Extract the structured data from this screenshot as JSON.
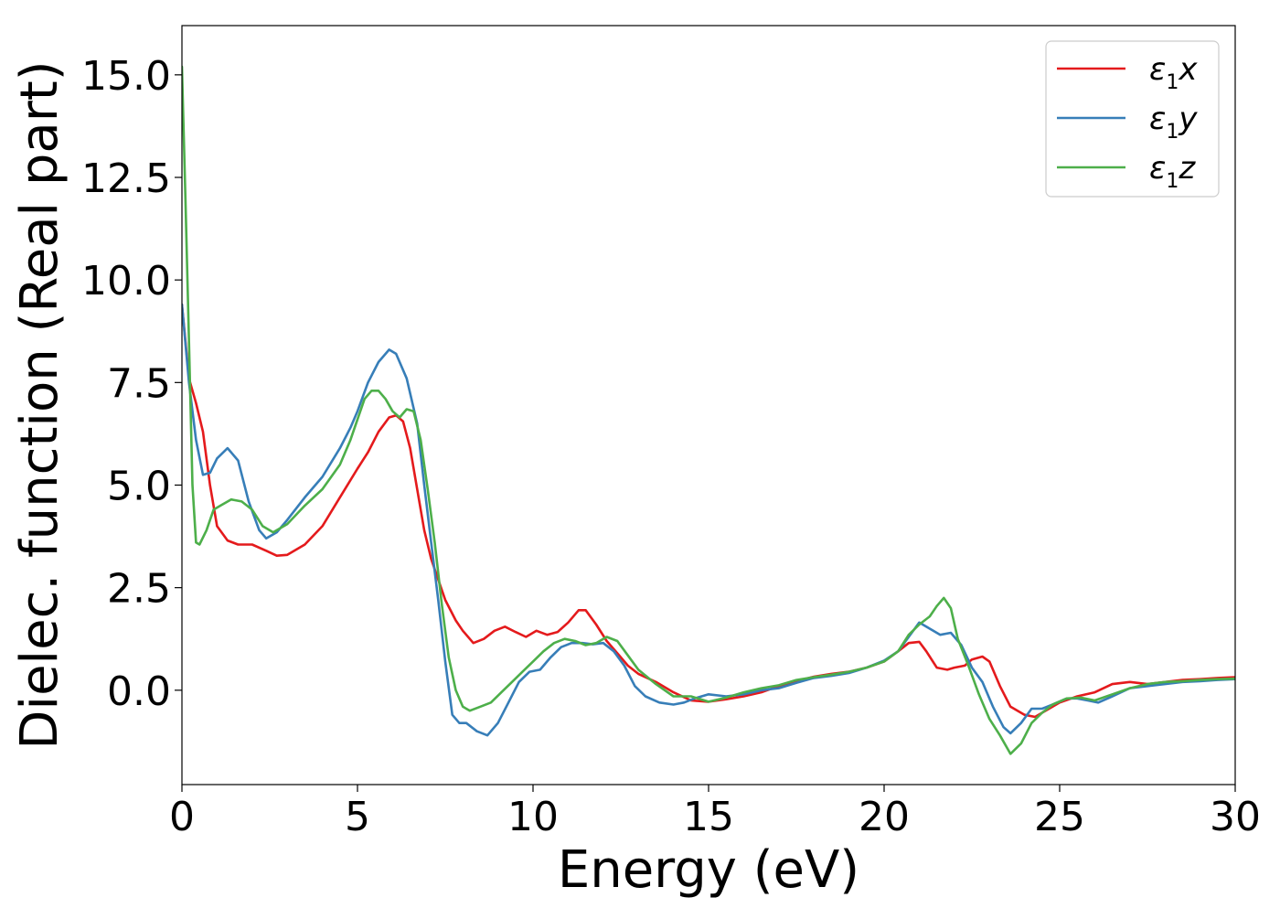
{
  "chart_data": {
    "type": "line",
    "title": "",
    "xlabel": "Energy (eV)",
    "ylabel": "Dielec. function (Real part)",
    "xlim": [
      0,
      30
    ],
    "ylim": [
      -2.3,
      16.2
    ],
    "xticks": [
      0,
      5,
      10,
      15,
      20,
      25,
      30
    ],
    "xtick_labels": [
      "0",
      "5",
      "10",
      "15",
      "20",
      "25",
      "30"
    ],
    "yticks": [
      0,
      2.5,
      5,
      7.5,
      10,
      12.5,
      15
    ],
    "ytick_labels": [
      "0.0",
      "2.5",
      "5.0",
      "7.5",
      "10.0",
      "12.5",
      "15.0"
    ],
    "grid": false,
    "legend_position": "top-right",
    "series": [
      {
        "name": "ε1x",
        "legend_main": "ε",
        "legend_sub": "1",
        "legend_suffix": "x",
        "color": "#e41a1c",
        "points": [
          [
            0,
            9.4
          ],
          [
            0.2,
            7.6
          ],
          [
            0.4,
            7.0
          ],
          [
            0.6,
            6.3
          ],
          [
            0.8,
            5.0
          ],
          [
            1.0,
            4.0
          ],
          [
            1.3,
            3.65
          ],
          [
            1.6,
            3.55
          ],
          [
            2.0,
            3.55
          ],
          [
            2.4,
            3.4
          ],
          [
            2.7,
            3.28
          ],
          [
            3.0,
            3.3
          ],
          [
            3.5,
            3.55
          ],
          [
            4.0,
            4.0
          ],
          [
            4.5,
            4.7
          ],
          [
            5.0,
            5.4
          ],
          [
            5.3,
            5.8
          ],
          [
            5.6,
            6.3
          ],
          [
            5.9,
            6.65
          ],
          [
            6.1,
            6.7
          ],
          [
            6.3,
            6.55
          ],
          [
            6.5,
            5.9
          ],
          [
            6.7,
            4.9
          ],
          [
            6.9,
            3.9
          ],
          [
            7.1,
            3.2
          ],
          [
            7.3,
            2.7
          ],
          [
            7.5,
            2.2
          ],
          [
            7.8,
            1.7
          ],
          [
            8.0,
            1.45
          ],
          [
            8.3,
            1.15
          ],
          [
            8.6,
            1.25
          ],
          [
            8.9,
            1.45
          ],
          [
            9.2,
            1.55
          ],
          [
            9.5,
            1.42
          ],
          [
            9.8,
            1.3
          ],
          [
            10.1,
            1.45
          ],
          [
            10.4,
            1.35
          ],
          [
            10.7,
            1.42
          ],
          [
            11.0,
            1.65
          ],
          [
            11.3,
            1.95
          ],
          [
            11.5,
            1.95
          ],
          [
            11.8,
            1.6
          ],
          [
            12.1,
            1.2
          ],
          [
            12.4,
            0.9
          ],
          [
            12.7,
            0.6
          ],
          [
            13.0,
            0.4
          ],
          [
            13.5,
            0.2
          ],
          [
            14.0,
            -0.05
          ],
          [
            14.5,
            -0.25
          ],
          [
            15.0,
            -0.28
          ],
          [
            15.5,
            -0.22
          ],
          [
            16.0,
            -0.15
          ],
          [
            16.5,
            -0.05
          ],
          [
            17.0,
            0.1
          ],
          [
            17.5,
            0.22
          ],
          [
            18.0,
            0.33
          ],
          [
            18.5,
            0.4
          ],
          [
            19.0,
            0.45
          ],
          [
            19.5,
            0.55
          ],
          [
            20.0,
            0.7
          ],
          [
            20.4,
            0.95
          ],
          [
            20.7,
            1.15
          ],
          [
            21.0,
            1.18
          ],
          [
            21.2,
            0.95
          ],
          [
            21.5,
            0.55
          ],
          [
            21.8,
            0.5
          ],
          [
            22.0,
            0.55
          ],
          [
            22.3,
            0.6
          ],
          [
            22.5,
            0.75
          ],
          [
            22.8,
            0.82
          ],
          [
            23.0,
            0.7
          ],
          [
            23.3,
            0.1
          ],
          [
            23.6,
            -0.4
          ],
          [
            24.0,
            -0.6
          ],
          [
            24.3,
            -0.65
          ],
          [
            24.6,
            -0.5
          ],
          [
            25.0,
            -0.3
          ],
          [
            25.5,
            -0.15
          ],
          [
            26.0,
            -0.05
          ],
          [
            26.5,
            0.15
          ],
          [
            27.0,
            0.2
          ],
          [
            27.5,
            0.15
          ],
          [
            28.0,
            0.2
          ],
          [
            28.5,
            0.25
          ],
          [
            29.0,
            0.27
          ],
          [
            29.5,
            0.3
          ],
          [
            30.0,
            0.32
          ]
        ]
      },
      {
        "name": "ε1y",
        "legend_main": "ε",
        "legend_sub": "1",
        "legend_suffix": "y",
        "color": "#377eb8",
        "points": [
          [
            0,
            9.4
          ],
          [
            0.2,
            7.5
          ],
          [
            0.4,
            6.1
          ],
          [
            0.6,
            5.25
          ],
          [
            0.8,
            5.3
          ],
          [
            1.0,
            5.65
          ],
          [
            1.3,
            5.9
          ],
          [
            1.6,
            5.6
          ],
          [
            1.9,
            4.6
          ],
          [
            2.2,
            3.9
          ],
          [
            2.4,
            3.7
          ],
          [
            2.7,
            3.85
          ],
          [
            3.0,
            4.15
          ],
          [
            3.5,
            4.7
          ],
          [
            4.0,
            5.2
          ],
          [
            4.5,
            5.9
          ],
          [
            4.8,
            6.4
          ],
          [
            5.0,
            6.8
          ],
          [
            5.3,
            7.5
          ],
          [
            5.6,
            8.0
          ],
          [
            5.9,
            8.3
          ],
          [
            6.1,
            8.2
          ],
          [
            6.4,
            7.6
          ],
          [
            6.7,
            6.5
          ],
          [
            6.9,
            5.0
          ],
          [
            7.1,
            3.6
          ],
          [
            7.3,
            2.2
          ],
          [
            7.5,
            0.7
          ],
          [
            7.7,
            -0.6
          ],
          [
            7.9,
            -0.8
          ],
          [
            8.1,
            -0.8
          ],
          [
            8.4,
            -1.0
          ],
          [
            8.7,
            -1.1
          ],
          [
            9.0,
            -0.8
          ],
          [
            9.3,
            -0.3
          ],
          [
            9.6,
            0.2
          ],
          [
            9.9,
            0.45
          ],
          [
            10.2,
            0.5
          ],
          [
            10.5,
            0.8
          ],
          [
            10.8,
            1.05
          ],
          [
            11.1,
            1.15
          ],
          [
            11.4,
            1.15
          ],
          [
            11.7,
            1.12
          ],
          [
            12.0,
            1.15
          ],
          [
            12.3,
            0.95
          ],
          [
            12.6,
            0.6
          ],
          [
            12.9,
            0.1
          ],
          [
            13.2,
            -0.15
          ],
          [
            13.6,
            -0.3
          ],
          [
            14.0,
            -0.35
          ],
          [
            14.3,
            -0.3
          ],
          [
            14.6,
            -0.2
          ],
          [
            15.0,
            -0.1
          ],
          [
            15.5,
            -0.15
          ],
          [
            16.0,
            -0.1
          ],
          [
            16.5,
            0
          ],
          [
            17.0,
            0.05
          ],
          [
            17.5,
            0.18
          ],
          [
            18.0,
            0.3
          ],
          [
            18.5,
            0.35
          ],
          [
            19.0,
            0.42
          ],
          [
            19.5,
            0.55
          ],
          [
            20.0,
            0.72
          ],
          [
            20.4,
            0.95
          ],
          [
            20.7,
            1.3
          ],
          [
            21.0,
            1.65
          ],
          [
            21.3,
            1.5
          ],
          [
            21.6,
            1.35
          ],
          [
            21.9,
            1.4
          ],
          [
            22.2,
            1.1
          ],
          [
            22.5,
            0.55
          ],
          [
            22.8,
            0.2
          ],
          [
            23.1,
            -0.4
          ],
          [
            23.4,
            -0.9
          ],
          [
            23.6,
            -1.05
          ],
          [
            23.9,
            -0.8
          ],
          [
            24.2,
            -0.45
          ],
          [
            24.5,
            -0.45
          ],
          [
            24.8,
            -0.35
          ],
          [
            25.2,
            -0.2
          ],
          [
            25.5,
            -0.2
          ],
          [
            25.8,
            -0.25
          ],
          [
            26.1,
            -0.3
          ],
          [
            26.5,
            -0.15
          ],
          [
            27.0,
            0.05
          ],
          [
            27.5,
            0.1
          ],
          [
            28.0,
            0.15
          ],
          [
            28.5,
            0.2
          ],
          [
            29.0,
            0.22
          ],
          [
            29.5,
            0.25
          ],
          [
            30.0,
            0.27
          ]
        ]
      },
      {
        "name": "ε1z",
        "legend_main": "ε",
        "legend_sub": "1",
        "legend_suffix": "z",
        "color": "#4daf4a",
        "points": [
          [
            0,
            15.2
          ],
          [
            0.1,
            12.0
          ],
          [
            0.2,
            8.5
          ],
          [
            0.3,
            5.0
          ],
          [
            0.4,
            3.6
          ],
          [
            0.5,
            3.55
          ],
          [
            0.7,
            3.9
          ],
          [
            0.9,
            4.4
          ],
          [
            1.1,
            4.5
          ],
          [
            1.4,
            4.65
          ],
          [
            1.7,
            4.6
          ],
          [
            2.0,
            4.4
          ],
          [
            2.3,
            4.0
          ],
          [
            2.6,
            3.85
          ],
          [
            3.0,
            4.05
          ],
          [
            3.5,
            4.5
          ],
          [
            4.0,
            4.9
          ],
          [
            4.5,
            5.5
          ],
          [
            4.8,
            6.1
          ],
          [
            5.0,
            6.6
          ],
          [
            5.2,
            7.1
          ],
          [
            5.4,
            7.3
          ],
          [
            5.6,
            7.3
          ],
          [
            5.8,
            7.1
          ],
          [
            6.0,
            6.8
          ],
          [
            6.2,
            6.65
          ],
          [
            6.4,
            6.85
          ],
          [
            6.6,
            6.8
          ],
          [
            6.8,
            6.1
          ],
          [
            7.0,
            4.9
          ],
          [
            7.2,
            3.6
          ],
          [
            7.4,
            2.1
          ],
          [
            7.6,
            0.8
          ],
          [
            7.8,
            0
          ],
          [
            8.0,
            -0.4
          ],
          [
            8.2,
            -0.5
          ],
          [
            8.5,
            -0.4
          ],
          [
            8.8,
            -0.3
          ],
          [
            9.1,
            -0.05
          ],
          [
            9.4,
            0.2
          ],
          [
            9.7,
            0.45
          ],
          [
            10.0,
            0.7
          ],
          [
            10.3,
            0.95
          ],
          [
            10.6,
            1.15
          ],
          [
            10.9,
            1.25
          ],
          [
            11.2,
            1.2
          ],
          [
            11.5,
            1.1
          ],
          [
            11.8,
            1.15
          ],
          [
            12.1,
            1.3
          ],
          [
            12.4,
            1.2
          ],
          [
            12.7,
            0.85
          ],
          [
            13.0,
            0.5
          ],
          [
            13.5,
            0.15
          ],
          [
            14.0,
            -0.15
          ],
          [
            14.5,
            -0.15
          ],
          [
            15.0,
            -0.28
          ],
          [
            15.5,
            -0.18
          ],
          [
            16.0,
            -0.05
          ],
          [
            16.5,
            0.05
          ],
          [
            17.0,
            0.12
          ],
          [
            17.5,
            0.25
          ],
          [
            18.0,
            0.32
          ],
          [
            18.5,
            0.38
          ],
          [
            19.0,
            0.45
          ],
          [
            19.5,
            0.55
          ],
          [
            20.0,
            0.7
          ],
          [
            20.4,
            0.95
          ],
          [
            20.7,
            1.35
          ],
          [
            21.0,
            1.6
          ],
          [
            21.3,
            1.8
          ],
          [
            21.5,
            2.05
          ],
          [
            21.7,
            2.25
          ],
          [
            21.9,
            2.0
          ],
          [
            22.1,
            1.25
          ],
          [
            22.4,
            0.6
          ],
          [
            22.7,
            -0.1
          ],
          [
            23.0,
            -0.7
          ],
          [
            23.3,
            -1.1
          ],
          [
            23.6,
            -1.55
          ],
          [
            23.9,
            -1.3
          ],
          [
            24.2,
            -0.8
          ],
          [
            24.5,
            -0.55
          ],
          [
            24.8,
            -0.35
          ],
          [
            25.2,
            -0.2
          ],
          [
            25.6,
            -0.18
          ],
          [
            26.0,
            -0.25
          ],
          [
            26.5,
            -0.1
          ],
          [
            27.0,
            0.05
          ],
          [
            27.5,
            0.15
          ],
          [
            28.0,
            0.2
          ],
          [
            28.5,
            0.22
          ],
          [
            29.0,
            0.25
          ],
          [
            29.5,
            0.27
          ],
          [
            30.0,
            0.28
          ]
        ]
      }
    ]
  }
}
